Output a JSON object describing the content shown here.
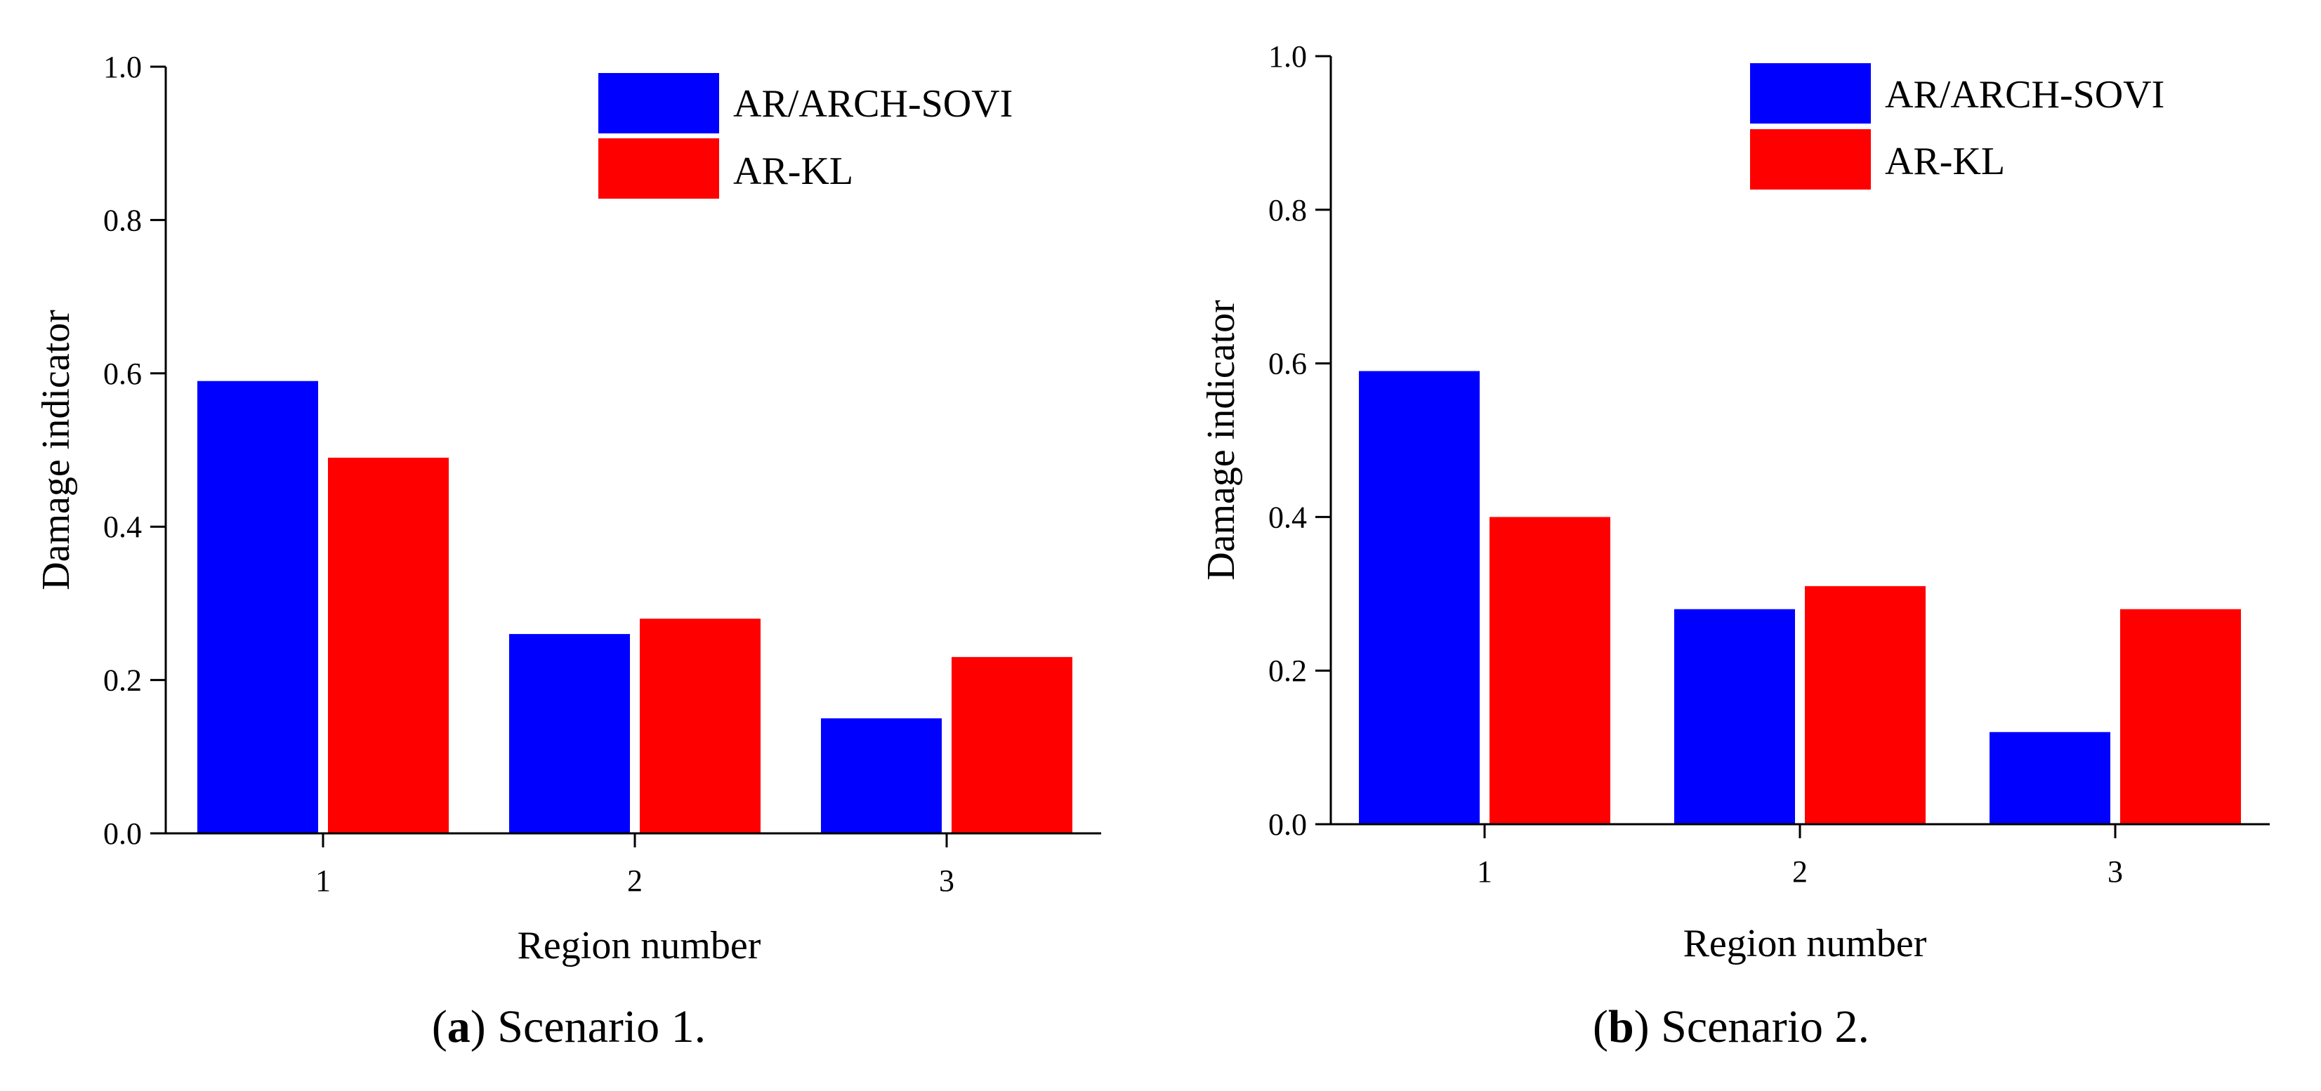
{
  "colors": {
    "series_a": "#0000FF",
    "series_b": "#FF0000"
  },
  "chart_data": [
    {
      "type": "bar",
      "panel_label": "a",
      "caption": "Scenario 1.",
      "xlabel": "Region number",
      "ylabel": "Damage indicator",
      "categories": [
        "1",
        "2",
        "3"
      ],
      "ylim": [
        0,
        1.0
      ],
      "yticks": [
        "0.0",
        "0.2",
        "0.4",
        "0.6",
        "0.8",
        "1.0"
      ],
      "legend_position": "top-right",
      "series": [
        {
          "name": "AR/ARCH-SOVI",
          "color": "#0000FF",
          "values": [
            0.59,
            0.26,
            0.15
          ]
        },
        {
          "name": "AR-KL",
          "color": "#FF0000",
          "values": [
            0.49,
            0.28,
            0.23
          ]
        }
      ]
    },
    {
      "type": "bar",
      "panel_label": "b",
      "caption": "Scenario 2.",
      "xlabel": "Region number",
      "ylabel": "Damage indicator",
      "categories": [
        "1",
        "2",
        "3"
      ],
      "ylim": [
        0,
        1.0
      ],
      "yticks": [
        "0.0",
        "0.2",
        "0.4",
        "0.6",
        "0.8",
        "1.0"
      ],
      "legend_position": "top-right",
      "series": [
        {
          "name": "AR/ARCH-SOVI",
          "color": "#0000FF",
          "values": [
            0.59,
            0.28,
            0.12
          ]
        },
        {
          "name": "AR-KL",
          "color": "#FF0000",
          "values": [
            0.4,
            0.31,
            0.28
          ]
        }
      ]
    }
  ]
}
